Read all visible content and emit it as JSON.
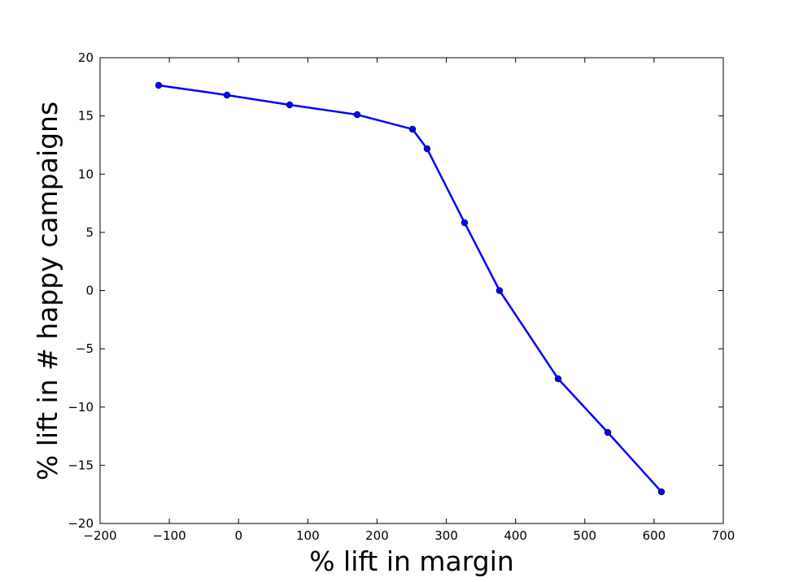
{
  "chart_data": {
    "type": "line",
    "xlabel": "% lift in margin",
    "ylabel": "% lift in # happy campaigns",
    "x": [
      -115.4,
      -16.7,
      73.8,
      171.3,
      251.2,
      272.3,
      326.4,
      376.9,
      461.5,
      533.2,
      610.7
    ],
    "series": [
      {
        "color": "#0000ff",
        "values": [
          17.63,
          16.79,
          15.95,
          15.11,
          13.86,
          12.18,
          5.83,
          0,
          -7.57,
          -12.18,
          -17.28
        ]
      }
    ],
    "xlim": [
      -200,
      700
    ],
    "xticks": [
      {
        "value": -200,
        "label": "−200"
      },
      {
        "value": -100,
        "label": "−100"
      },
      0,
      100,
      200,
      300,
      400,
      500,
      600,
      700
    ],
    "ylim": [
      -20,
      20
    ],
    "yticks": [
      {
        "value": -20,
        "label": "−20"
      },
      {
        "value": -15,
        "label": "−15"
      },
      {
        "value": -10,
        "label": "−10"
      },
      {
        "value": -5,
        "label": "−5"
      },
      0,
      5,
      10,
      15,
      20
    ]
  }
}
